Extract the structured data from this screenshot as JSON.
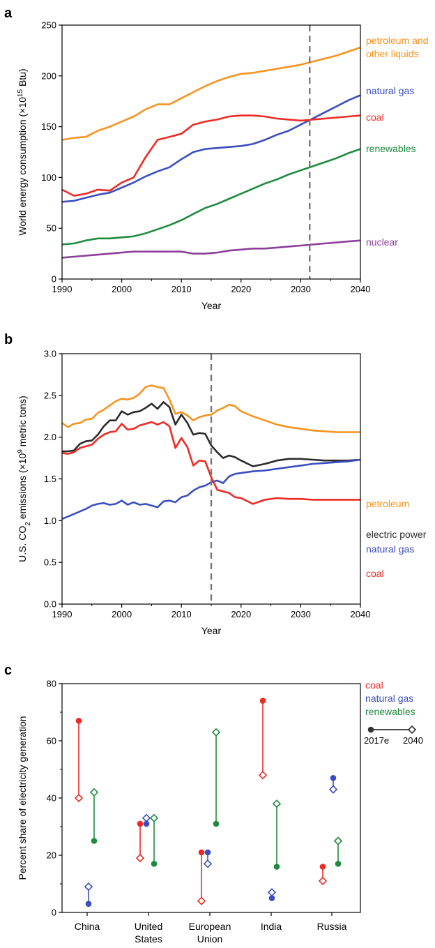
{
  "chart_data": [
    {
      "panel": "a",
      "type": "line",
      "xlabel": "Year",
      "ylabel": "World energy consumption (×10",
      "ylabel_sup": "15",
      "ylabel_end": " Btu)",
      "xlim": [
        1990,
        2040
      ],
      "ylim": [
        0,
        250
      ],
      "xticks": [
        1990,
        2000,
        2010,
        2020,
        2030,
        2040
      ],
      "yticks": [
        0,
        50,
        100,
        150,
        200,
        250
      ],
      "vline": 2031.5,
      "x": [
        1990,
        1992,
        1994,
        1996,
        1998,
        2000,
        2002,
        2004,
        2006,
        2008,
        2010,
        2012,
        2014,
        2016,
        2018,
        2020,
        2022,
        2024,
        2026,
        2028,
        2030,
        2032,
        2034,
        2036,
        2038,
        2040
      ],
      "series": [
        {
          "name": "petroleum and",
          "name2": "other liquids",
          "color": "#F7931E",
          "values": [
            137,
            139,
            140,
            146,
            150,
            155,
            160,
            167,
            172,
            172,
            178,
            184,
            190,
            195,
            199,
            202,
            203,
            205,
            207,
            209,
            211,
            214,
            217,
            220,
            224,
            228
          ]
        },
        {
          "name": "natural gas",
          "color": "#3A4EC0",
          "values": [
            76,
            77,
            80,
            83,
            85,
            90,
            95,
            101,
            106,
            110,
            118,
            125,
            128,
            129,
            130,
            131,
            133,
            137,
            142,
            146,
            152,
            158,
            164,
            170,
            176,
            181
          ]
        },
        {
          "name": "coal",
          "color": "#EE2A24",
          "values": [
            88,
            82,
            84,
            88,
            87,
            95,
            100,
            120,
            137,
            140,
            143,
            152,
            155,
            157,
            160,
            161,
            161,
            160,
            158,
            157,
            156,
            157,
            158,
            159,
            160,
            161
          ]
        },
        {
          "name": "renewables",
          "color": "#1E8B3E",
          "values": [
            34,
            35,
            38,
            40,
            40,
            41,
            42,
            45,
            49,
            53,
            58,
            64,
            70,
            74,
            79,
            84,
            89,
            94,
            98,
            103,
            107,
            111,
            115,
            119,
            124,
            128
          ]
        },
        {
          "name": "nuclear",
          "color": "#8B3E9A",
          "values": [
            21,
            22,
            23,
            24,
            25,
            26,
            27,
            27,
            27,
            27,
            27,
            25,
            25,
            26,
            28,
            29,
            30,
            30,
            31,
            32,
            33,
            34,
            35,
            36,
            37,
            38
          ]
        }
      ]
    },
    {
      "panel": "b",
      "type": "line",
      "xlabel": "Year",
      "ylabel": "U.S. CO",
      "ylabel_sub": "2",
      "ylabel_mid": " emissions (×10",
      "ylabel_sup": "9",
      "ylabel_end": " metric tons)",
      "xlim": [
        1990,
        2040
      ],
      "ylim": [
        0.0,
        3.0
      ],
      "xticks": [
        1990,
        2000,
        2010,
        2020,
        2030,
        2040
      ],
      "yticks": [
        "0.0",
        "0.5",
        "1.0",
        "1.5",
        "2.0",
        "2.5",
        "3.0"
      ],
      "vline": 2015,
      "series": [
        {
          "name": "petroleum",
          "color": "#F7931E",
          "x": [
            1990,
            1991,
            1992,
            1993,
            1994,
            1995,
            1996,
            1997,
            1998,
            1999,
            2000,
            2001,
            2002,
            2003,
            2004,
            2005,
            2006,
            2007,
            2008,
            2009,
            2010,
            2011,
            2012,
            2013,
            2014,
            2015,
            2016,
            2017,
            2018,
            2019,
            2020,
            2022,
            2024,
            2026,
            2028,
            2030,
            2032,
            2034,
            2036,
            2038,
            2040
          ],
          "values": [
            2.17,
            2.12,
            2.16,
            2.17,
            2.21,
            2.22,
            2.29,
            2.33,
            2.38,
            2.43,
            2.46,
            2.45,
            2.47,
            2.52,
            2.6,
            2.62,
            2.6,
            2.59,
            2.45,
            2.28,
            2.3,
            2.26,
            2.2,
            2.24,
            2.26,
            2.27,
            2.32,
            2.35,
            2.39,
            2.37,
            2.31,
            2.25,
            2.2,
            2.15,
            2.12,
            2.1,
            2.08,
            2.07,
            2.06,
            2.06,
            2.06
          ]
        },
        {
          "name": "electric power",
          "color": "#2B2B2B",
          "x": [
            1990,
            1991,
            1992,
            1993,
            1994,
            1995,
            1996,
            1997,
            1998,
            1999,
            2000,
            2001,
            2002,
            2003,
            2004,
            2005,
            2006,
            2007,
            2008,
            2009,
            2010,
            2011,
            2012,
            2013,
            2014,
            2015,
            2016,
            2017,
            2018,
            2019,
            2020,
            2022,
            2024,
            2026,
            2028,
            2030,
            2032,
            2034,
            2036,
            2038,
            2040
          ],
          "values": [
            1.83,
            1.83,
            1.84,
            1.92,
            1.95,
            1.96,
            2.03,
            2.13,
            2.2,
            2.2,
            2.31,
            2.27,
            2.3,
            2.31,
            2.35,
            2.4,
            2.34,
            2.42,
            2.36,
            2.15,
            2.27,
            2.17,
            2.03,
            2.05,
            2.04,
            1.9,
            1.82,
            1.75,
            1.78,
            1.76,
            1.72,
            1.65,
            1.68,
            1.72,
            1.74,
            1.74,
            1.73,
            1.72,
            1.72,
            1.72,
            1.73
          ]
        },
        {
          "name": "natural gas",
          "color": "#3A4EC0",
          "x": [
            1990,
            1991,
            1992,
            1993,
            1994,
            1995,
            1996,
            1997,
            1998,
            1999,
            2000,
            2001,
            2002,
            2003,
            2004,
            2005,
            2006,
            2007,
            2008,
            2009,
            2010,
            2011,
            2012,
            2013,
            2014,
            2015,
            2016,
            2017,
            2018,
            2019,
            2020,
            2022,
            2024,
            2026,
            2028,
            2030,
            2032,
            2034,
            2036,
            2038,
            2040
          ],
          "values": [
            1.02,
            1.05,
            1.08,
            1.11,
            1.14,
            1.18,
            1.2,
            1.21,
            1.19,
            1.2,
            1.24,
            1.19,
            1.22,
            1.19,
            1.2,
            1.18,
            1.16,
            1.23,
            1.24,
            1.22,
            1.28,
            1.3,
            1.36,
            1.4,
            1.42,
            1.46,
            1.48,
            1.45,
            1.53,
            1.56,
            1.57,
            1.59,
            1.6,
            1.62,
            1.64,
            1.66,
            1.68,
            1.69,
            1.7,
            1.71,
            1.73
          ]
        },
        {
          "name": "coal",
          "color": "#EE2A24",
          "x": [
            1990,
            1991,
            1992,
            1993,
            1994,
            1995,
            1996,
            1997,
            1998,
            1999,
            2000,
            2001,
            2002,
            2003,
            2004,
            2005,
            2006,
            2007,
            2008,
            2009,
            2010,
            2011,
            2012,
            2013,
            2014,
            2015,
            2016,
            2017,
            2018,
            2019,
            2020,
            2022,
            2024,
            2026,
            2028,
            2030,
            2032,
            2034,
            2036,
            2038,
            2040
          ],
          "values": [
            1.81,
            1.8,
            1.82,
            1.87,
            1.89,
            1.91,
            1.98,
            2.03,
            2.06,
            2.07,
            2.16,
            2.09,
            2.1,
            2.14,
            2.16,
            2.18,
            2.15,
            2.18,
            2.13,
            1.87,
            1.99,
            1.88,
            1.66,
            1.72,
            1.71,
            1.52,
            1.37,
            1.35,
            1.33,
            1.28,
            1.27,
            1.2,
            1.25,
            1.27,
            1.26,
            1.26,
            1.25,
            1.25,
            1.25,
            1.25,
            1.25
          ]
        }
      ]
    },
    {
      "panel": "c",
      "type": "scatter",
      "ylabel": "Percent share of electricity generation",
      "ylim": [
        0,
        80
      ],
      "yticks": [
        0,
        20,
        40,
        60,
        80
      ],
      "categories": [
        {
          "line1": "China",
          "line2": ""
        },
        {
          "line1": "United",
          "line2": "States"
        },
        {
          "line1": "European",
          "line2": "Union"
        },
        {
          "line1": "India",
          "line2": ""
        },
        {
          "line1": "Russia",
          "line2": ""
        }
      ],
      "legend": {
        "marker_start": "2017e",
        "marker_end": "2040"
      },
      "series": [
        {
          "name": "coal",
          "color": "#EE2A24",
          "values_2017e": [
            67,
            31,
            21,
            74,
            16
          ],
          "values_2040": [
            40,
            19,
            4,
            48,
            11
          ]
        },
        {
          "name": "natural gas",
          "color": "#3A4EC0",
          "values_2017e": [
            3,
            31,
            21,
            5,
            47
          ],
          "values_2040": [
            9,
            33,
            17,
            7,
            43
          ]
        },
        {
          "name": "renewables",
          "color": "#1E8B3E",
          "values_2017e": [
            25,
            17,
            31,
            16,
            17
          ],
          "values_2040": [
            42,
            33,
            63,
            38,
            25
          ]
        }
      ]
    }
  ]
}
